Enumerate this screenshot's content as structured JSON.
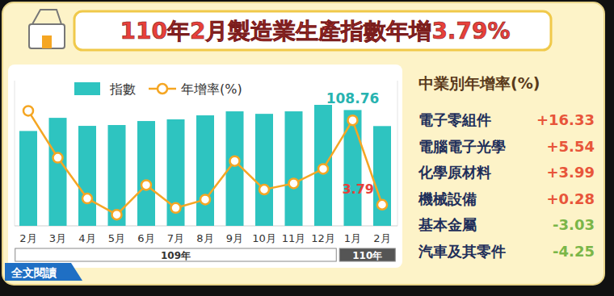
{
  "chart_data": {
    "type": "bar",
    "title": "110年2月製造業生產指數年增3.79%",
    "categories": [
      "2月",
      "3月",
      "4月",
      "5月",
      "6月",
      "7月",
      "8月",
      "9月",
      "10月",
      "11月",
      "12月",
      "1月",
      "2月"
    ],
    "category_groups": [
      {
        "label": "109年",
        "count": 11
      },
      {
        "label": "110年",
        "count": 2
      }
    ],
    "series": [
      {
        "name": "指數",
        "type": "bar",
        "color": "#2ec4c0",
        "values": [
          93.6,
          103.1,
          97.3,
          97.9,
          100.8,
          102.0,
          104.9,
          107.8,
          106.0,
          107.8,
          112.5,
          108.76,
          97.15
        ],
        "value_labels": [
          null,
          null,
          null,
          null,
          null,
          null,
          null,
          null,
          null,
          null,
          null,
          "108.76",
          null
        ]
      },
      {
        "name": "年增率(%)",
        "type": "line",
        "axis": "y2",
        "color": "#f5a623",
        "marker": "circle",
        "values": [
          20.6,
          12.2,
          4.9,
          2.0,
          7.3,
          3.2,
          4.7,
          11.6,
          6.5,
          7.6,
          10.2,
          18.9,
          3.79
        ],
        "value_labels": [
          null,
          null,
          null,
          null,
          null,
          null,
          null,
          null,
          null,
          null,
          null,
          null,
          "3.79"
        ]
      }
    ],
    "ylim": [
      25,
      130
    ],
    "y2lim": [
      0,
      26
    ],
    "tick_labels": "x",
    "legend": "top-left"
  },
  "panel": {
    "title": "中業別年增率(%)",
    "rows": [
      {
        "label": "電子零組件",
        "value": 16.33,
        "value_label": "+16.33"
      },
      {
        "label": "電腦電子光學",
        "value": 5.54,
        "value_label": "+5.54"
      },
      {
        "label": "化學原材料",
        "value": 3.99,
        "value_label": "+3.99"
      },
      {
        "label": "機械設備",
        "value": 0.28,
        "value_label": "+0.28"
      },
      {
        "label": "基本金屬",
        "value": -3.03,
        "value_label": "-3.03"
      },
      {
        "label": "汽車及其零件",
        "value": -4.25,
        "value_label": "-4.25"
      }
    ]
  },
  "button": "全文閱讀"
}
